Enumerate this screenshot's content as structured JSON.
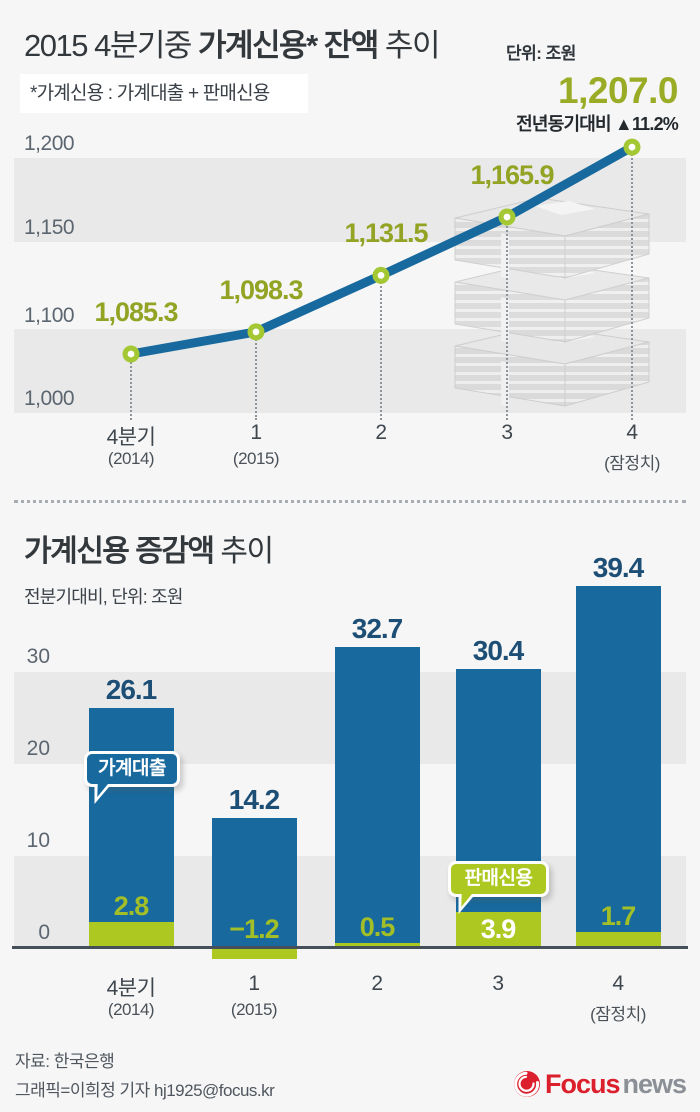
{
  "header": {
    "title_prefix": "2015 4분기중 ",
    "title_strong": "가계신용* 잔액 ",
    "title_suffix": "추이",
    "unit": "단위: 조원",
    "note": "*가계신용 : 가계대출 + 판매신용",
    "highlight_value": "1,207.0",
    "highlight_annotation": "전년동기대비 ▲11.2%"
  },
  "bottom_header": {
    "title_strong": "가계신용 증감액 ",
    "title_suffix": "추이",
    "subtitle": "전분기대비, 단위: 조원"
  },
  "tooltips": {
    "loan_tag": "가계대출",
    "credit_tag": "판매신용"
  },
  "footer": {
    "source": "자료: 한국은행",
    "credit": "그래픽=이희정 기자 hj1925@focus.kr",
    "logo_focus": "Focus",
    "logo_news": "news"
  },
  "colors": {
    "line_blue": "#17699e",
    "bar_blue": "#17699e",
    "bar_green": "#aec822",
    "marker_green": "#a4c834",
    "value_olive": "#93a324",
    "total_navy": "#1d4e75",
    "logo_red": "#dc1f2c"
  },
  "chart_data": [
    {
      "type": "line",
      "title": "2015 4분기중 가계신용* 잔액 추이",
      "unit": "조원",
      "categories": [
        "4분기 (2014)",
        "1 (2015)",
        "2",
        "3",
        "4 (잠정치)"
      ],
      "x_tick_lines": [
        [
          "4분기",
          "(2014)"
        ],
        [
          "1",
          "(2015)"
        ],
        [
          "2",
          ""
        ],
        [
          "3",
          ""
        ],
        [
          "4",
          "(잠정치)"
        ]
      ],
      "values": [
        1085.3,
        1098.3,
        1131.5,
        1165.9,
        1207.0
      ],
      "value_labels": [
        "1,085.3",
        "1,098.3",
        "1,131.5",
        "1,165.9",
        "1,207.0"
      ],
      "y_ticks": [
        {
          "label": "1,200",
          "value": 1200
        },
        {
          "label": "1,150",
          "value": 1150
        },
        {
          "label": "1,100",
          "value": 1100
        },
        {
          "label": "1,000",
          "value": 1000
        }
      ],
      "ylim": [
        1000,
        1210
      ],
      "annotation": "전년동기대비 ▲11.2%",
      "grid": "striped-bands"
    },
    {
      "type": "bar",
      "title": "가계신용 증감액 추이",
      "subtitle": "전분기대비, 단위: 조원",
      "categories": [
        "4분기 (2014)",
        "1 (2015)",
        "2",
        "3",
        "4 (잠정치)"
      ],
      "x_tick_lines": [
        [
          "4분기",
          "(2014)"
        ],
        [
          "1",
          "(2015)"
        ],
        [
          "2",
          ""
        ],
        [
          "3",
          ""
        ],
        [
          "4",
          "(잠정치)"
        ]
      ],
      "series": [
        {
          "name": "가계대출",
          "color": "#17699e",
          "values": [
            26.1,
            14.2,
            32.7,
            30.4,
            39.4
          ],
          "value_labels": [
            "26.1",
            "14.2",
            "32.7",
            "30.4",
            "39.4"
          ]
        },
        {
          "name": "판매신용",
          "color": "#aec822",
          "values": [
            2.8,
            -1.2,
            0.5,
            3.9,
            1.7
          ],
          "value_labels": [
            "2.8",
            "−1.2",
            "0.5",
            "3.9",
            "1.7"
          ]
        }
      ],
      "y_ticks": [
        {
          "label": "30",
          "value": 30
        },
        {
          "label": "20",
          "value": 20
        },
        {
          "label": "10",
          "value": 10
        },
        {
          "label": "0",
          "value": 0
        }
      ],
      "ylim": [
        -2,
        41
      ],
      "grid": "striped-bands"
    }
  ]
}
